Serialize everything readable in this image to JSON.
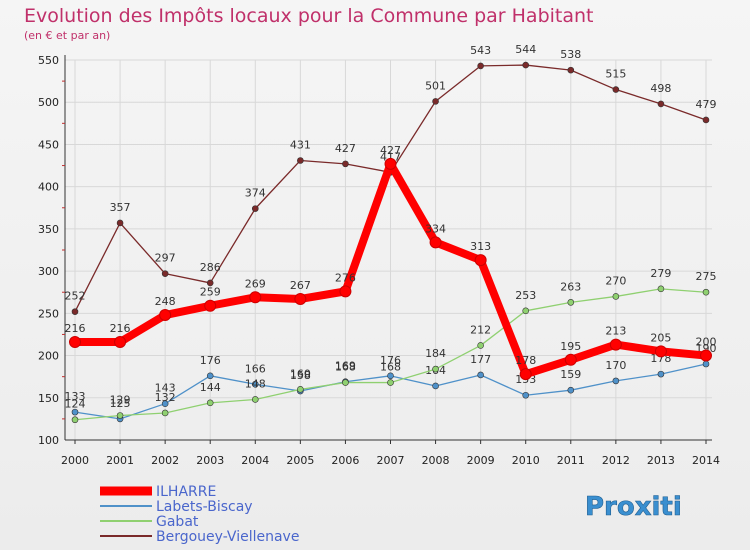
{
  "chart_data": {
    "type": "line",
    "title": "Evolution des Impôts locaux pour la Commune par Habitant",
    "subtitle": "(en € et par an)",
    "xlabel": "",
    "ylabel": "",
    "categories": [
      "2000",
      "2001",
      "2002",
      "2003",
      "2004",
      "2005",
      "2006",
      "2007",
      "2008",
      "2009",
      "2010",
      "2011",
      "2012",
      "2013",
      "2014"
    ],
    "ylim": [
      100,
      550
    ],
    "yticks": [
      100,
      150,
      200,
      250,
      300,
      350,
      400,
      450,
      500,
      550
    ],
    "grid": true,
    "legend_position": "bottom-left",
    "series": [
      {
        "name": "ILHARRE",
        "color": "#ff0000",
        "emphasis": true,
        "values": [
          216,
          216,
          248,
          259,
          269,
          267,
          276,
          427,
          334,
          313,
          178,
          195,
          213,
          205,
          200
        ]
      },
      {
        "name": "Labets-Biscay",
        "color": "#4f91c9",
        "values": [
          133,
          125,
          143,
          176,
          166,
          158,
          169,
          176,
          164,
          177,
          153,
          159,
          170,
          178,
          190
        ]
      },
      {
        "name": "Gabat",
        "color": "#8fd070",
        "values": [
          124,
          129,
          132,
          144,
          148,
          160,
          168,
          168,
          184,
          212,
          253,
          263,
          270,
          279,
          275
        ]
      },
      {
        "name": "Bergouey-Viellenave",
        "color": "#7a2a2a",
        "values": [
          252,
          357,
          297,
          286,
          374,
          431,
          427,
          417,
          501,
          543,
          544,
          538,
          515,
          498,
          479
        ]
      }
    ]
  },
  "brand": {
    "logo_text": "Proxiti"
  }
}
